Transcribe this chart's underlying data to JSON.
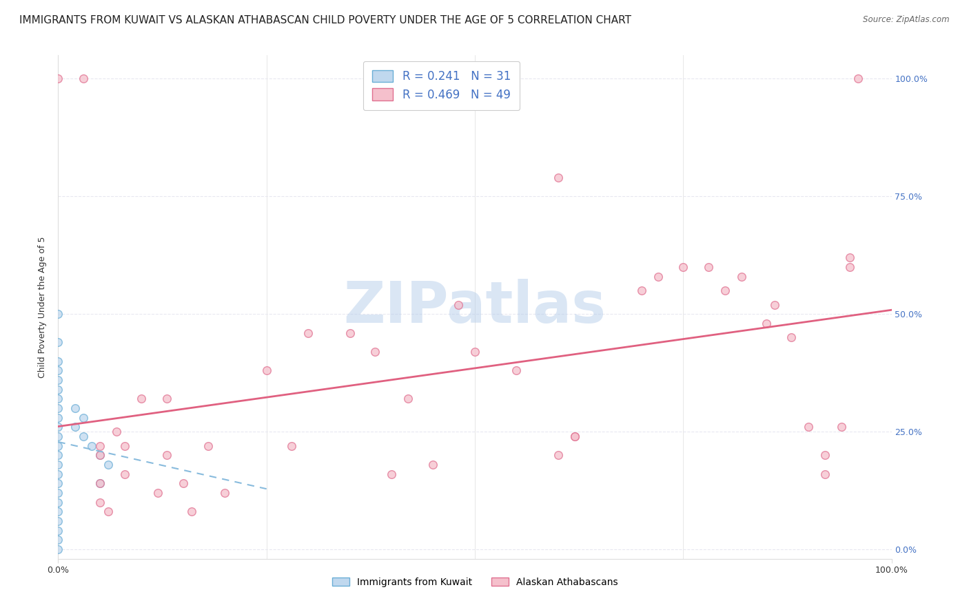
{
  "title": "IMMIGRANTS FROM KUWAIT VS ALASKAN ATHABASCAN CHILD POVERTY UNDER THE AGE OF 5 CORRELATION CHART",
  "source": "Source: ZipAtlas.com",
  "ylabel": "Child Poverty Under the Age of 5",
  "background_color": "#ffffff",
  "watermark": "ZIPatlas",
  "legend_entries": [
    {
      "label": "Immigrants from Kuwait",
      "color": "#a8c4e0",
      "R": "0.241",
      "N": "31"
    },
    {
      "label": "Alaskan Athabascans",
      "color": "#f4a0b0",
      "R": "0.469",
      "N": "49"
    }
  ],
  "kuwait_scatter": [
    [
      0.0,
      0.44
    ],
    [
      0.0,
      0.4
    ],
    [
      0.0,
      0.38
    ],
    [
      0.0,
      0.36
    ],
    [
      0.0,
      0.34
    ],
    [
      0.0,
      0.32
    ],
    [
      0.0,
      0.3
    ],
    [
      0.0,
      0.28
    ],
    [
      0.0,
      0.26
    ],
    [
      0.0,
      0.24
    ],
    [
      0.0,
      0.22
    ],
    [
      0.0,
      0.2
    ],
    [
      0.0,
      0.18
    ],
    [
      0.0,
      0.16
    ],
    [
      0.0,
      0.14
    ],
    [
      0.0,
      0.12
    ],
    [
      0.0,
      0.1
    ],
    [
      0.0,
      0.08
    ],
    [
      0.0,
      0.06
    ],
    [
      0.0,
      0.04
    ],
    [
      0.0,
      0.02
    ],
    [
      0.0,
      0.0
    ],
    [
      0.02,
      0.3
    ],
    [
      0.02,
      0.26
    ],
    [
      0.03,
      0.28
    ],
    [
      0.03,
      0.24
    ],
    [
      0.04,
      0.22
    ],
    [
      0.05,
      0.2
    ],
    [
      0.05,
      0.14
    ],
    [
      0.06,
      0.18
    ],
    [
      0.0,
      0.5
    ]
  ],
  "alaskan_scatter": [
    [
      0.05,
      0.1
    ],
    [
      0.05,
      0.14
    ],
    [
      0.05,
      0.2
    ],
    [
      0.05,
      0.22
    ],
    [
      0.06,
      0.08
    ],
    [
      0.07,
      0.25
    ],
    [
      0.08,
      0.16
    ],
    [
      0.08,
      0.22
    ],
    [
      0.1,
      0.32
    ],
    [
      0.12,
      0.12
    ],
    [
      0.13,
      0.2
    ],
    [
      0.13,
      0.32
    ],
    [
      0.15,
      0.14
    ],
    [
      0.16,
      0.08
    ],
    [
      0.18,
      0.22
    ],
    [
      0.2,
      0.12
    ],
    [
      0.25,
      0.38
    ],
    [
      0.28,
      0.22
    ],
    [
      0.3,
      0.46
    ],
    [
      0.35,
      0.46
    ],
    [
      0.38,
      0.42
    ],
    [
      0.4,
      0.16
    ],
    [
      0.42,
      0.32
    ],
    [
      0.45,
      0.18
    ],
    [
      0.48,
      0.52
    ],
    [
      0.5,
      0.42
    ],
    [
      0.55,
      0.38
    ],
    [
      0.6,
      0.2
    ],
    [
      0.62,
      0.24
    ],
    [
      0.62,
      0.24
    ],
    [
      0.7,
      0.55
    ],
    [
      0.72,
      0.58
    ],
    [
      0.75,
      0.6
    ],
    [
      0.78,
      0.6
    ],
    [
      0.8,
      0.55
    ],
    [
      0.82,
      0.58
    ],
    [
      0.85,
      0.48
    ],
    [
      0.86,
      0.52
    ],
    [
      0.88,
      0.45
    ],
    [
      0.9,
      0.26
    ],
    [
      0.92,
      0.2
    ],
    [
      0.92,
      0.16
    ],
    [
      0.94,
      0.26
    ],
    [
      0.95,
      0.6
    ],
    [
      0.95,
      0.62
    ],
    [
      0.96,
      1.0
    ],
    [
      0.0,
      1.0
    ],
    [
      0.03,
      1.0
    ],
    [
      0.6,
      0.79
    ]
  ],
  "ytick_labels": [
    "0.0%",
    "25.0%",
    "50.0%",
    "75.0%",
    "100.0%"
  ],
  "ytick_values": [
    0.0,
    0.25,
    0.5,
    0.75,
    1.0
  ],
  "xtick_labels": [
    "0.0%",
    "100.0%"
  ],
  "xtick_values": [
    0.0,
    1.0
  ],
  "xlim": [
    0.0,
    1.0
  ],
  "ylim": [
    -0.02,
    1.05
  ],
  "grid_color": "#e8e8f0",
  "scatter_size": 70,
  "scatter_alpha": 0.75,
  "scatter_edgecolor_kuwait": "#6aaed6",
  "scatter_edgecolor_alaskan": "#e07090",
  "scatter_facecolor_kuwait": "#c0d8ee",
  "scatter_facecolor_alaskan": "#f5c0cc",
  "trendline_color_kuwait": "#88bbdd",
  "trendline_color_alaskan": "#e06080",
  "title_fontsize": 11,
  "axis_label_fontsize": 9,
  "tick_fontsize": 9,
  "right_tick_color": "#4472c4",
  "legend_r_color": "#4472c4"
}
